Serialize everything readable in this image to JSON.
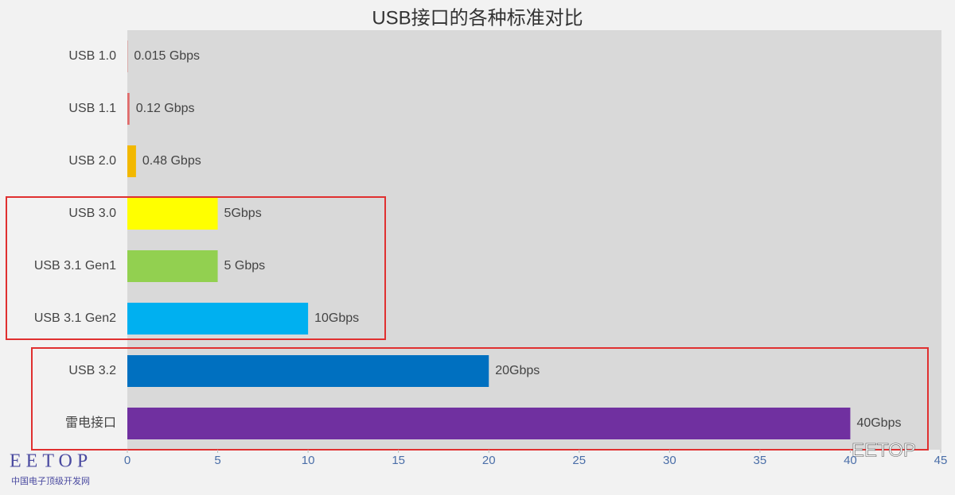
{
  "chart_data": {
    "type": "bar",
    "orientation": "horizontal",
    "title": "USB接口的各种标准对比",
    "categories": [
      "USB 1.0",
      "USB 1.1",
      "USB 2.0",
      "USB 3.0",
      "USB 3.1 Gen1",
      "USB 3.1 Gen2",
      "USB 3.2",
      "雷电接口"
    ],
    "values": [
      0.015,
      0.12,
      0.48,
      5,
      5,
      10,
      20,
      40
    ],
    "value_labels": [
      "0.015 Gbps",
      "0.12 Gbps",
      "0.48 Gbps",
      "5Gbps",
      "5 Gbps",
      "10Gbps",
      "20Gbps",
      "40Gbps"
    ],
    "colors": [
      "#d9534f",
      "#e06a6a",
      "#f2b800",
      "#ffff00",
      "#92d050",
      "#00b0f0",
      "#0070c0",
      "#7030a0"
    ],
    "xlim": [
      0,
      45
    ],
    "xticks": [
      0,
      5,
      10,
      15,
      20,
      25,
      30,
      35,
      40,
      45
    ]
  },
  "watermarks": {
    "logo_left": "EETOP",
    "logo_left_sub": "中国电子顶级开发网",
    "logo_right": "EETOP"
  }
}
